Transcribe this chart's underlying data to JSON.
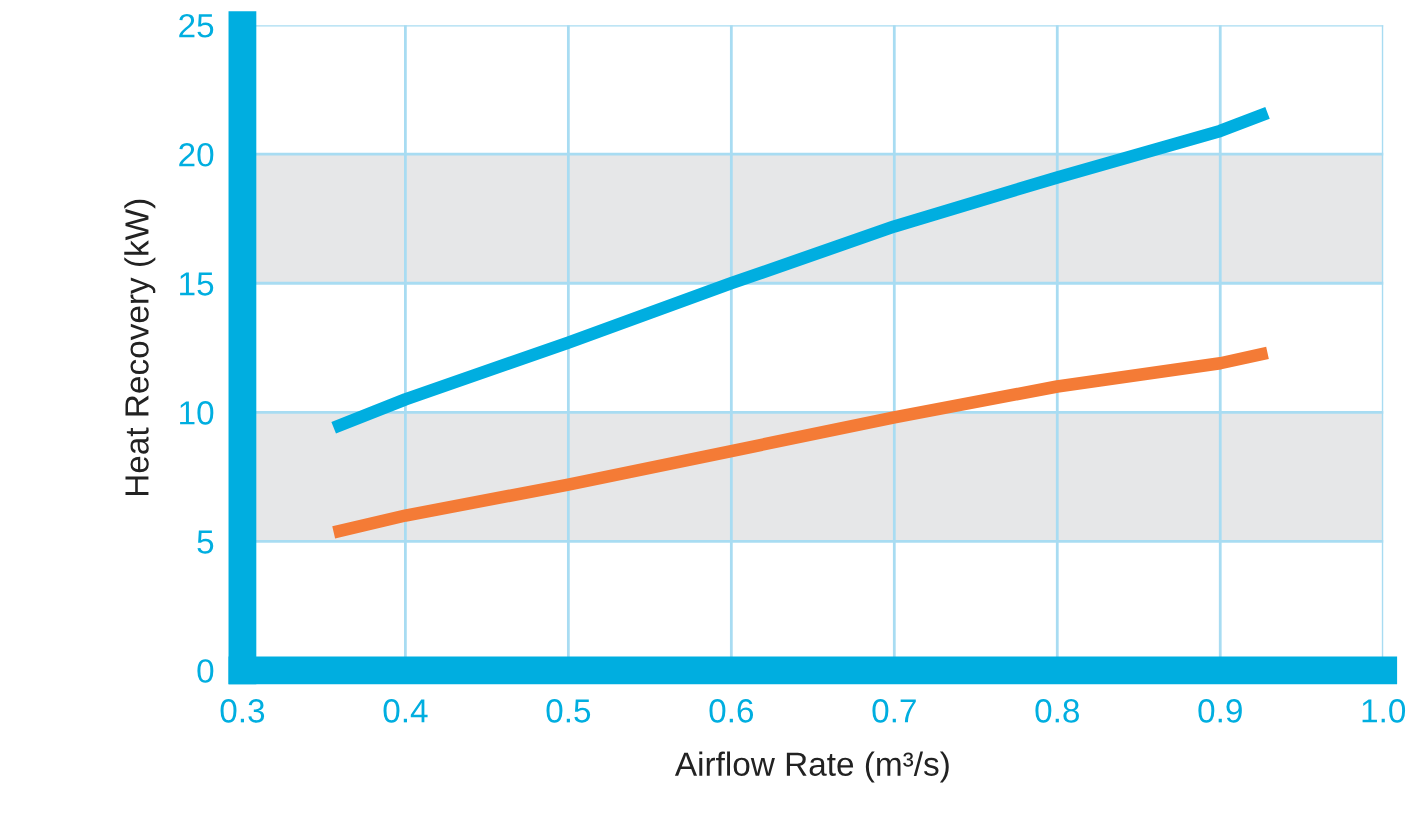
{
  "chart_data": {
    "type": "line",
    "xlabel": "Airflow Rate (m³/s)",
    "ylabel": "Heat Recovery (kW)",
    "series": [
      {
        "color": "#00aee0",
        "x": [
          0.356,
          0.4,
          0.5,
          0.6,
          0.7,
          0.8,
          0.9,
          0.929
        ],
        "values": [
          9.4,
          10.5,
          12.7,
          15.0,
          17.2,
          19.1,
          20.9,
          21.6
        ]
      },
      {
        "color": "#f47b36",
        "x": [
          0.356,
          0.4,
          0.5,
          0.6,
          0.7,
          0.8,
          0.9,
          0.929
        ],
        "values": [
          5.35,
          6.0,
          7.2,
          8.5,
          9.8,
          11.0,
          11.9,
          12.3
        ]
      }
    ],
    "xlim": [
      0.3,
      1.0
    ],
    "ylim": [
      0,
      25
    ],
    "xticks": [
      0.3,
      0.4,
      0.5,
      0.6,
      0.7,
      0.8,
      0.9,
      {
        "value": 1.0,
        "label": "1.0"
      }
    ],
    "yticks": [
      0,
      5,
      10,
      15,
      20,
      25
    ],
    "bands": [
      {
        "axis": "y",
        "from": 5,
        "to": 10,
        "color": "#e6e7e8"
      },
      {
        "axis": "y",
        "from": 15,
        "to": 20,
        "color": "#e6e7e8"
      }
    ],
    "grid": true,
    "legend": false,
    "marker": "none",
    "line_style": "solid"
  }
}
